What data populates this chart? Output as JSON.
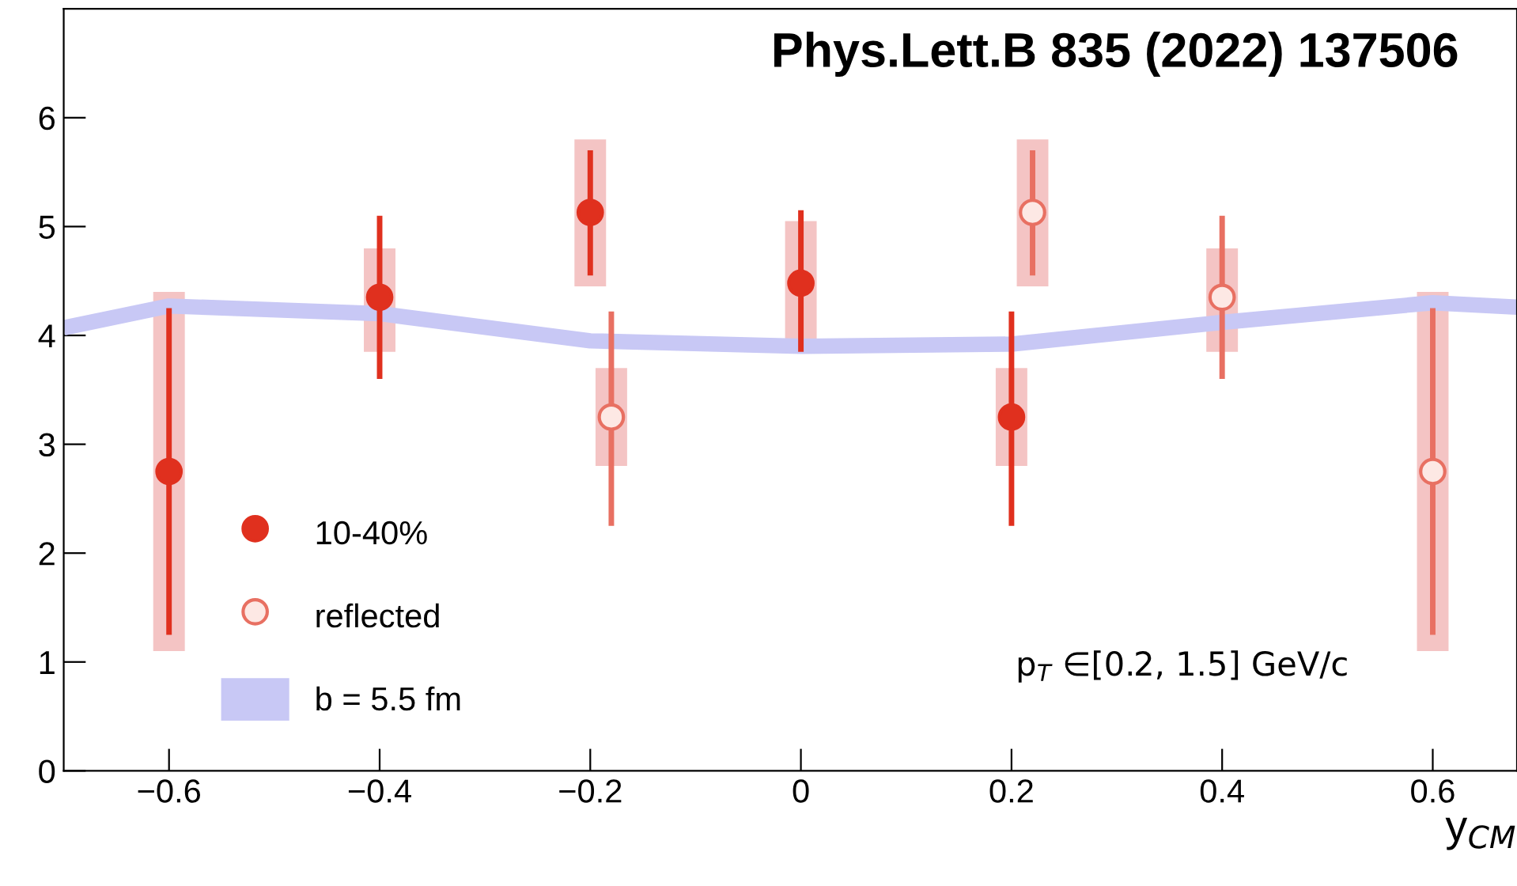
{
  "chart_data": {
    "type": "scatter",
    "xlabel": "y$_{CM}$",
    "xlim": [
      -0.7,
      0.68
    ],
    "ylim": [
      0,
      7
    ],
    "xticks": [
      {
        "value": -0.6,
        "label": "−0.6"
      },
      {
        "value": -0.4,
        "label": "−0.4"
      },
      {
        "value": -0.2,
        "label": "−0.2"
      },
      0,
      0.2,
      0.4,
      0.6
    ],
    "yticks": [
      0,
      1,
      2,
      3,
      4,
      5,
      6
    ],
    "grid": false,
    "legend": "bottom left",
    "marker": "circle",
    "annotations": [
      "Phys.Lett.B 835 (2022) 137506",
      "p$_{T}$ ∈[0.2, 1.5] GeV/c"
    ],
    "series": [
      {
        "type": "line",
        "name": "b = 5.5 fm",
        "color": "#c8c8f5",
        "marker": "none",
        "x": [
          -0.7,
          -0.6,
          -0.4,
          -0.2,
          0,
          0.2,
          0.4,
          0.6,
          0.68
        ],
        "values": [
          4.07,
          4.27,
          4.2,
          3.95,
          3.9,
          3.92,
          4.12,
          4.3,
          4.26
        ]
      },
      {
        "type": "bar",
        "color": "#f4c4c4",
        "x": [
          -0.6,
          -0.4,
          -0.2,
          -0.18,
          0,
          0.2,
          0.22,
          0.4,
          0.6
        ],
        "base": [
          1.1,
          3.85,
          4.45,
          2.8,
          3.9,
          2.8,
          4.45,
          3.85,
          1.1
        ],
        "values": [
          3.3,
          0.95,
          1.35,
          0.9,
          1.15,
          0.9,
          1.35,
          0.95,
          3.3
        ]
      },
      {
        "name": "10-40%",
        "color": "#e0301e",
        "x": [
          -0.6,
          -0.4,
          -0.2,
          0,
          0.2
        ],
        "values": [
          2.75,
          4.35,
          5.13,
          4.48,
          3.25
        ],
        "errors": [
          [
            1.25,
            4.25
          ],
          [
            3.6,
            5.1
          ],
          [
            4.55,
            5.7
          ],
          [
            3.85,
            5.15
          ],
          [
            2.25,
            4.22
          ]
        ]
      },
      {
        "name": "reflected",
        "color": "#e87062",
        "colors": [
          "#fde8e4",
          "#fde8e4",
          "#fde8e4",
          "#fde8e4"
        ],
        "x": [
          -0.18,
          0.22,
          0.4,
          0.6
        ],
        "values": [
          3.25,
          5.13,
          4.35,
          2.75
        ],
        "errors": [
          [
            2.25,
            4.22
          ],
          [
            4.55,
            5.7
          ],
          [
            3.6,
            5.1
          ],
          [
            1.25,
            4.25
          ]
        ]
      }
    ]
  }
}
